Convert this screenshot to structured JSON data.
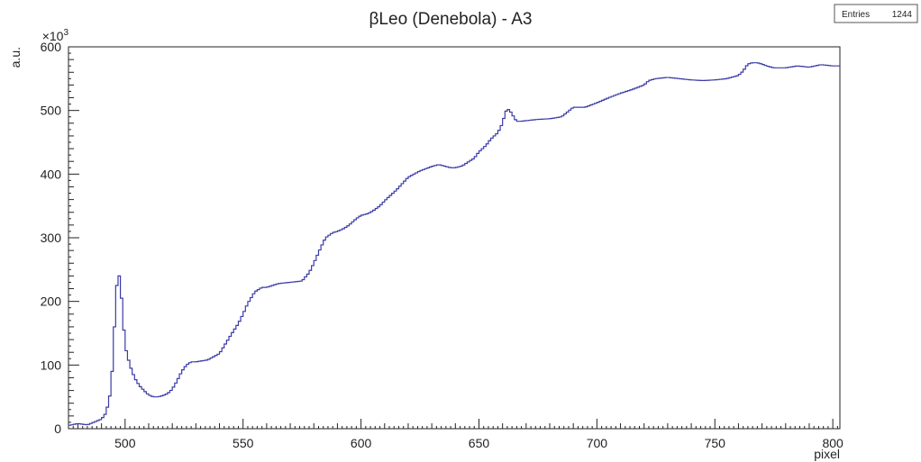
{
  "chart_data": {
    "type": "line",
    "title": "βLeo (Denebola) - A3",
    "xlabel": "pixel",
    "ylabel": "a.u.",
    "y_exponent": "×10",
    "y_exponent_power": "3",
    "xlim": [
      476,
      803
    ],
    "ylim": [
      0,
      600
    ],
    "x_ticks": [
      500,
      550,
      600,
      650,
      700,
      750,
      800
    ],
    "y_ticks": [
      0,
      100,
      200,
      300,
      400,
      500,
      600
    ],
    "stats": {
      "label": "Entries",
      "value": "1244"
    },
    "grid": false,
    "line_color": "#3a3aa8",
    "series": [
      {
        "x": [
          476,
          480,
          484,
          488,
          490,
          492,
          494,
          495,
          496,
          497,
          498,
          499,
          500,
          502,
          504,
          506,
          508,
          510,
          512,
          514,
          516,
          518,
          520,
          522,
          524,
          526,
          528,
          530,
          535,
          540,
          542,
          545,
          548,
          550,
          552,
          555,
          558,
          560,
          565,
          570,
          575,
          578,
          580,
          583,
          585,
          588,
          590,
          593,
          595,
          598,
          600,
          603,
          605,
          608,
          610,
          615,
          620,
          625,
          630,
          633,
          635,
          638,
          640,
          643,
          645,
          648,
          650,
          653,
          655,
          658,
          660,
          661,
          662,
          663,
          664,
          665,
          666,
          668,
          670,
          675,
          680,
          685,
          690,
          693,
          695,
          700,
          705,
          710,
          715,
          720,
          722,
          725,
          730,
          735,
          740,
          745,
          750,
          755,
          760,
          762,
          764,
          766,
          768,
          770,
          772,
          775,
          780,
          785,
          790,
          795,
          800,
          803
        ],
        "y": [
          5,
          8,
          6,
          12,
          15,
          25,
          60,
          120,
          200,
          250,
          230,
          180,
          130,
          100,
          80,
          68,
          60,
          53,
          50,
          50,
          52,
          55,
          62,
          75,
          90,
          100,
          105,
          105,
          108,
          118,
          130,
          148,
          165,
          180,
          197,
          215,
          222,
          222,
          228,
          230,
          232,
          245,
          260,
          285,
          300,
          308,
          310,
          315,
          320,
          330,
          335,
          338,
          342,
          350,
          358,
          375,
          395,
          405,
          412,
          415,
          413,
          410,
          410,
          413,
          418,
          425,
          435,
          445,
          455,
          465,
          480,
          495,
          503,
          500,
          495,
          488,
          483,
          483,
          484,
          486,
          487,
          490,
          505,
          505,
          505,
          512,
          520,
          527,
          533,
          540,
          547,
          550,
          552,
          550,
          548,
          547,
          548,
          550,
          555,
          562,
          573,
          575,
          575,
          573,
          570,
          567,
          567,
          570,
          568,
          572,
          570,
          570
        ]
      }
    ]
  }
}
